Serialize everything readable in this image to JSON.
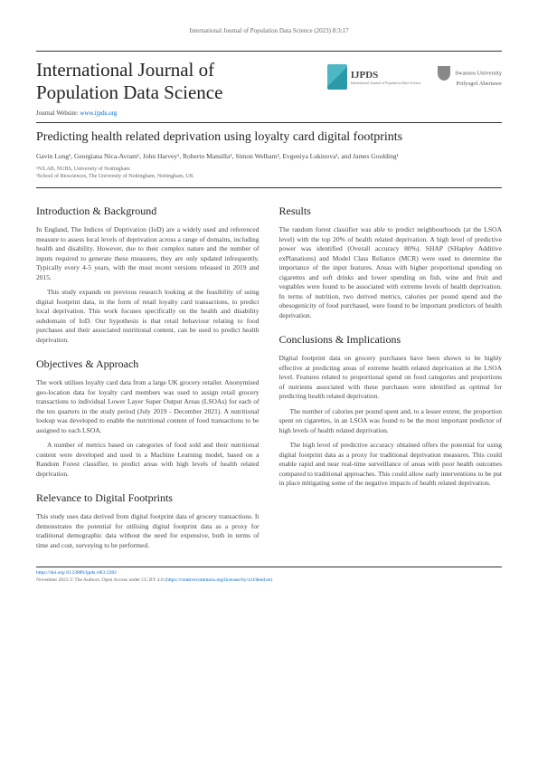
{
  "running_head": "International Journal of Population Data Science (2023) 8:3:17",
  "journal_title_line1": "International Journal of",
  "journal_title_line2": "Population Data Science",
  "website_label": "Journal Website: ",
  "website_url": "www.ijpds.org",
  "logo_ijpds": "IJPDS",
  "logo_ijpds_sub": "International Journal of Population Data Science",
  "logo_swansea_line1": "Swansea University",
  "logo_swansea_line2": "Prifysgol Abertawe",
  "article_title": "Predicting health related deprivation using loyalty card digital footprints",
  "authors": "Gavin Long¹, Georgiana Nica-Avram¹, John Harvey¹, Roberto Mansilla¹, Simon Welham², Evgeniya Lukinova¹, and James Goulding¹",
  "affil1": "¹N/LAB, NUBS, University of Nottingham",
  "affil2": "²School of Biosciences, The University of Nottingham, Nottingham, UK",
  "sections": {
    "intro": {
      "heading": "Introduction & Background",
      "p1": "In England, The Indices of Deprivation (IoD) are a widely used and referenced measure to assess local levels of deprivation across a range of domains, including health and disability. However, due to their complex nature and the number of inputs required to generate these measures, they are only updated infrequently. Typically every 4-5 years, with the most recent versions released in 2019 and 2015.",
      "p2": "This study expands on previous research looking at the feasibility of using digital footprint data, in the form of retail loyalty card transactions, to predict local deprivation. This work focuses specifically on the health and disability subdomain of IoD. Our hypothesis is that retail behaviour relating to food purchases and their associated nutritional content, can be used to predict health deprivation."
    },
    "obj": {
      "heading": "Objectives & Approach",
      "p1": "The work utilises loyalty card data from a large UK grocery retailer. Anonymised geo-location data for loyalty card members was used to assign retail grocery transactions to individual Lower Layer Super Output Areas (LSOAs) for each of the ten quarters in the study period (July 2019 - December 2021). A nutritional lookup was developed to enable the nutritional content of food transactions to be assigned to each LSOA.",
      "p2": "A number of metrics based on categories of food sold and their nutritional content were developed and used in a Machine Learning model, based on a Random Forest classifier, to predict areas with high levels of health related deprivation."
    },
    "rel": {
      "heading": "Relevance to Digital Footprints",
      "p1": "This study uses data derived from digital footprint data of grocery transactions. It demonstrates the potential for utilising digital footprint data as a proxy for traditional demographic data without the need for expensive, both in terms of time and cost, surveying to be performed."
    },
    "results": {
      "heading": "Results",
      "p1": "The random forest classifier was able to predict neighbourhoods (at the LSOA level) with the top 20% of health related deprivation. A high level of predictive power was identified (Overall accuracy 80%). SHAP (SHapley Additive exPlanations) and Model Class Reliance (MCR) were used to determine the importance of the input features. Areas with higher proportional spending on cigarettes and soft drinks and lower spending on fish, wine and fruit and vegtables were found to be associated with extreme levels of health deprivation. In terms of nutrition, two derived metrics, calories per pound spend and the obesogenicity of food purchased, were found to be important predictors of health deprivation."
    },
    "conc": {
      "heading": "Conclusions & Implications",
      "p1": "Digital footprint data on grocery purchases have been shown to be highly effective at predicting areas of extreme health related deprivation at the LSOA level. Features related to proportional spend on food categories and proportions of nutrients associated with these purchases were identified as optimal for predicting health related deprivation.",
      "p2": "The number of calories per pound spent and, to a lesser extent, the proportion spent on cigarettes, in an LSOA was found to be the most important predictor of high levels of health related deprivation.",
      "p3": "The high level of predictive accuracy obtained offers the potential for using digital footprint data as a proxy for traditional deprivation measures. This could enable rapid and near real-time surveillance of areas with poor health outcomes compared to traditional approaches. This could allow early interventions to be put in place mitigating some of the negative impacts of health related deprivation."
    }
  },
  "footer": {
    "doi": "https://doi.org/10.23889/ijpds.v8i3.2282",
    "line2_a": "November 2023 © The Authors. Open Access under CC BY 4.0 (",
    "license_url": "https://creativecommons.org/licenses/by/4.0/deed.en",
    "line2_b": ")"
  },
  "colors": {
    "text": "#333333",
    "link": "#0066cc",
    "rule": "#333333",
    "ijpds_teal": "#4db8c4"
  }
}
